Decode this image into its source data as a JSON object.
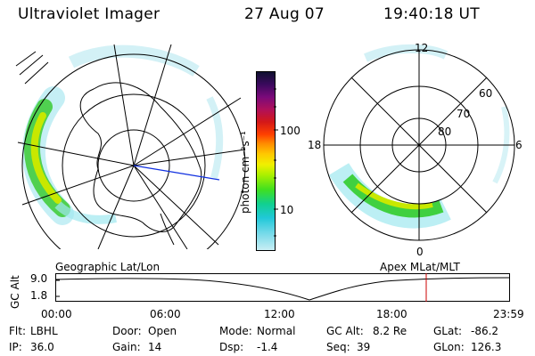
{
  "header": {
    "instrument": "Ultraviolet Imager",
    "date": "27 Aug 07",
    "time": "19:40:18 UT"
  },
  "left_panel": {
    "caption": "Geographic Lat/Lon"
  },
  "right_panel": {
    "caption": "Apex MLat/MLT",
    "mlt_labels": {
      "top": "12",
      "right": "6",
      "bottom": "0",
      "left": "18"
    },
    "lat_labels": [
      "60",
      "70",
      "80"
    ]
  },
  "colorbar": {
    "unit_label": "photon cm⁻²s⁻¹",
    "scale": "log",
    "tick_labels": [
      "100",
      "10"
    ],
    "colors": [
      "#101030",
      "#3b0a5e",
      "#7a0a7a",
      "#b0105a",
      "#d41818",
      "#ff4000",
      "#ff8a00",
      "#ffc800",
      "#f0f000",
      "#a8f000",
      "#40e020",
      "#10d090",
      "#20c8d8",
      "#70d8e8",
      "#c8eef4"
    ]
  },
  "altitude_plot": {
    "ylabel": "GC Alt",
    "y_ticks": [
      "9.0",
      "1.8"
    ],
    "x_ticks": [
      "00:00",
      "06:00",
      "12:00",
      "18:00",
      "23:59"
    ],
    "current_marker_color": "#cc0000"
  },
  "footer": {
    "row1": [
      {
        "label": "Flt:",
        "value": "LBHL"
      },
      {
        "label": "Door:",
        "value": "Open"
      },
      {
        "label": "Mode:",
        "value": "Normal"
      },
      {
        "label": "GC Alt:",
        "value": "8.2 Re"
      },
      {
        "label": "GLat:",
        "value": "-86.2"
      }
    ],
    "row2": [
      {
        "label": "IP:",
        "value": "36.0"
      },
      {
        "label": "Gain:",
        "value": "14"
      },
      {
        "label": "Dsp:",
        "value": "-1.4"
      },
      {
        "label": "Seq:",
        "value": "39"
      },
      {
        "label": "GLon:",
        "value": "126.3"
      }
    ]
  }
}
